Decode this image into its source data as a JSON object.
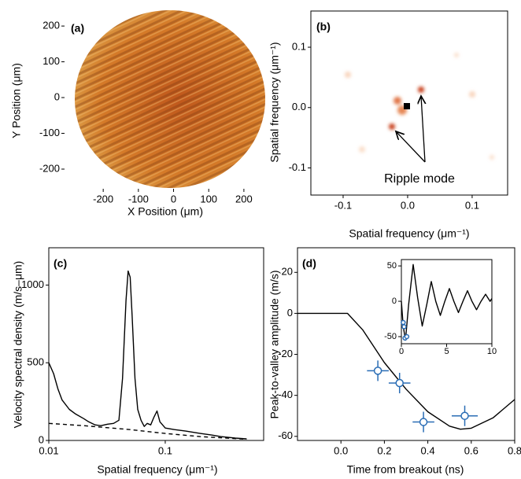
{
  "chart_data": [
    {
      "type": "image",
      "panel_label": "(a)",
      "x_label": "X Position (μm)",
      "y_label": "Y Position (μm)",
      "frame": false,
      "xlim": [
        -310,
        245
      ],
      "ylim": [
        -255,
        242
      ],
      "xticks": [
        -200,
        -100,
        0,
        100,
        200
      ],
      "yticks": [
        -200,
        -100,
        0,
        100,
        200
      ]
    },
    {
      "type": "image",
      "panel_label": "(b)",
      "x_label": "Spatial frequency (μm⁻¹)",
      "y_label": "Spatial frequency (μm⁻¹)",
      "frame": true,
      "annotation": "Ripple mode",
      "xlim": [
        -0.15,
        0.155
      ],
      "ylim": [
        -0.145,
        0.16
      ],
      "xticks": [
        -0.1,
        {
          "value": 0,
          "label": "0.0"
        },
        0.1
      ],
      "yticks": [
        -0.1,
        {
          "value": 0,
          "label": "0.0"
        },
        0.1
      ]
    },
    {
      "type": "line",
      "panel_label": "(c)",
      "x_label": "Spatial frequency (μm⁻¹)",
      "y_label": "Velocity spectral density (m/s–μm)",
      "frame": true,
      "xscale": "log",
      "xlim": [
        0.01,
        0.7
      ],
      "ylim": [
        0,
        1240
      ],
      "xticks": [
        0.01,
        0.1
      ],
      "yticks": [
        0,
        500,
        1000
      ],
      "series": [
        {
          "color": "#000000",
          "style": "solid",
          "x": [
            0.01,
            0.011,
            0.012,
            0.013,
            0.015,
            0.017,
            0.02,
            0.022,
            0.025,
            0.028,
            0.032,
            0.036,
            0.04,
            0.043,
            0.046,
            0.048,
            0.05,
            0.052,
            0.055,
            0.058,
            0.062,
            0.066,
            0.07,
            0.075,
            0.08,
            0.085,
            0.09,
            0.1,
            0.12,
            0.15,
            0.2,
            0.25,
            0.3,
            0.4,
            0.5
          ],
          "values": [
            500,
            430,
            330,
            260,
            200,
            170,
            140,
            120,
            100,
            95,
            105,
            110,
            130,
            400,
            900,
            1090,
            1050,
            800,
            400,
            200,
            130,
            90,
            110,
            100,
            150,
            190,
            120,
            80,
            70,
            60,
            45,
            35,
            25,
            15,
            10
          ]
        },
        {
          "color": "#000000",
          "style": "dashed",
          "x": [
            0.01,
            0.02,
            0.05,
            0.1,
            0.2,
            0.5
          ],
          "values": [
            110,
            95,
            70,
            45,
            25,
            8
          ]
        }
      ]
    },
    {
      "type": "line",
      "panel_label": "(d)",
      "x_label": "Time from breakout (ns)",
      "y_label": "Peak-to-valley amplitude (m/s)",
      "frame": true,
      "xlim": [
        -0.2,
        0.8
      ],
      "ylim": [
        -62,
        32
      ],
      "xticks": [
        {
          "value": 0,
          "label": "0.0"
        },
        0.2,
        0.4,
        0.6,
        0.8
      ],
      "yticks": [
        -60,
        -40,
        -20,
        0,
        20
      ],
      "series": [
        {
          "color": "#000000",
          "style": "solid",
          "x": [
            -0.2,
            0,
            0.03,
            0.1,
            0.2,
            0.3,
            0.4,
            0.5,
            0.55,
            0.6,
            0.7,
            0.8
          ],
          "values": [
            0,
            0,
            0,
            -8,
            -24,
            -37,
            -48,
            -55,
            -56.5,
            -56,
            -51,
            -42
          ]
        },
        {
          "color": "#2a6db5",
          "style": "points",
          "x": [
            0.17,
            0.27,
            0.38,
            0.57
          ],
          "values": [
            -28,
            -34,
            -53,
            -50
          ],
          "xerr": [
            0.05,
            0.05,
            0.05,
            0.06
          ],
          "yerr": [
            5,
            5,
            5,
            5
          ]
        }
      ],
      "inset": {
        "type": "line",
        "frame": true,
        "xlim": [
          0,
          10
        ],
        "ylim": [
          -60,
          59
        ],
        "xticks": [
          0,
          5,
          10
        ],
        "yticks": [
          -50,
          0,
          50
        ],
        "series": [
          {
            "color": "#000000",
            "style": "solid",
            "x": [
              0,
              0.2,
              0.45,
              0.8,
              1.3,
              1.8,
              2.3,
              2.8,
              3.3,
              3.8,
              4.3,
              4.8,
              5.3,
              5.8,
              6.3,
              6.8,
              7.3,
              7.8,
              8.3,
              8.8,
              9.3,
              9.8,
              10
            ],
            "values": [
              0,
              -35,
              -55,
              -5,
              52,
              5,
              -35,
              -5,
              28,
              0,
              -20,
              0,
              18,
              0,
              -16,
              0,
              15,
              0,
              -12,
              0,
              10,
              0,
              4
            ]
          },
          {
            "color": "#2a6db5",
            "style": "points",
            "x": [
              0.2,
              0.3,
              0.4,
              0.6
            ],
            "values": [
              -30,
              -36,
              -52,
              -50
            ]
          }
        ]
      }
    }
  ]
}
